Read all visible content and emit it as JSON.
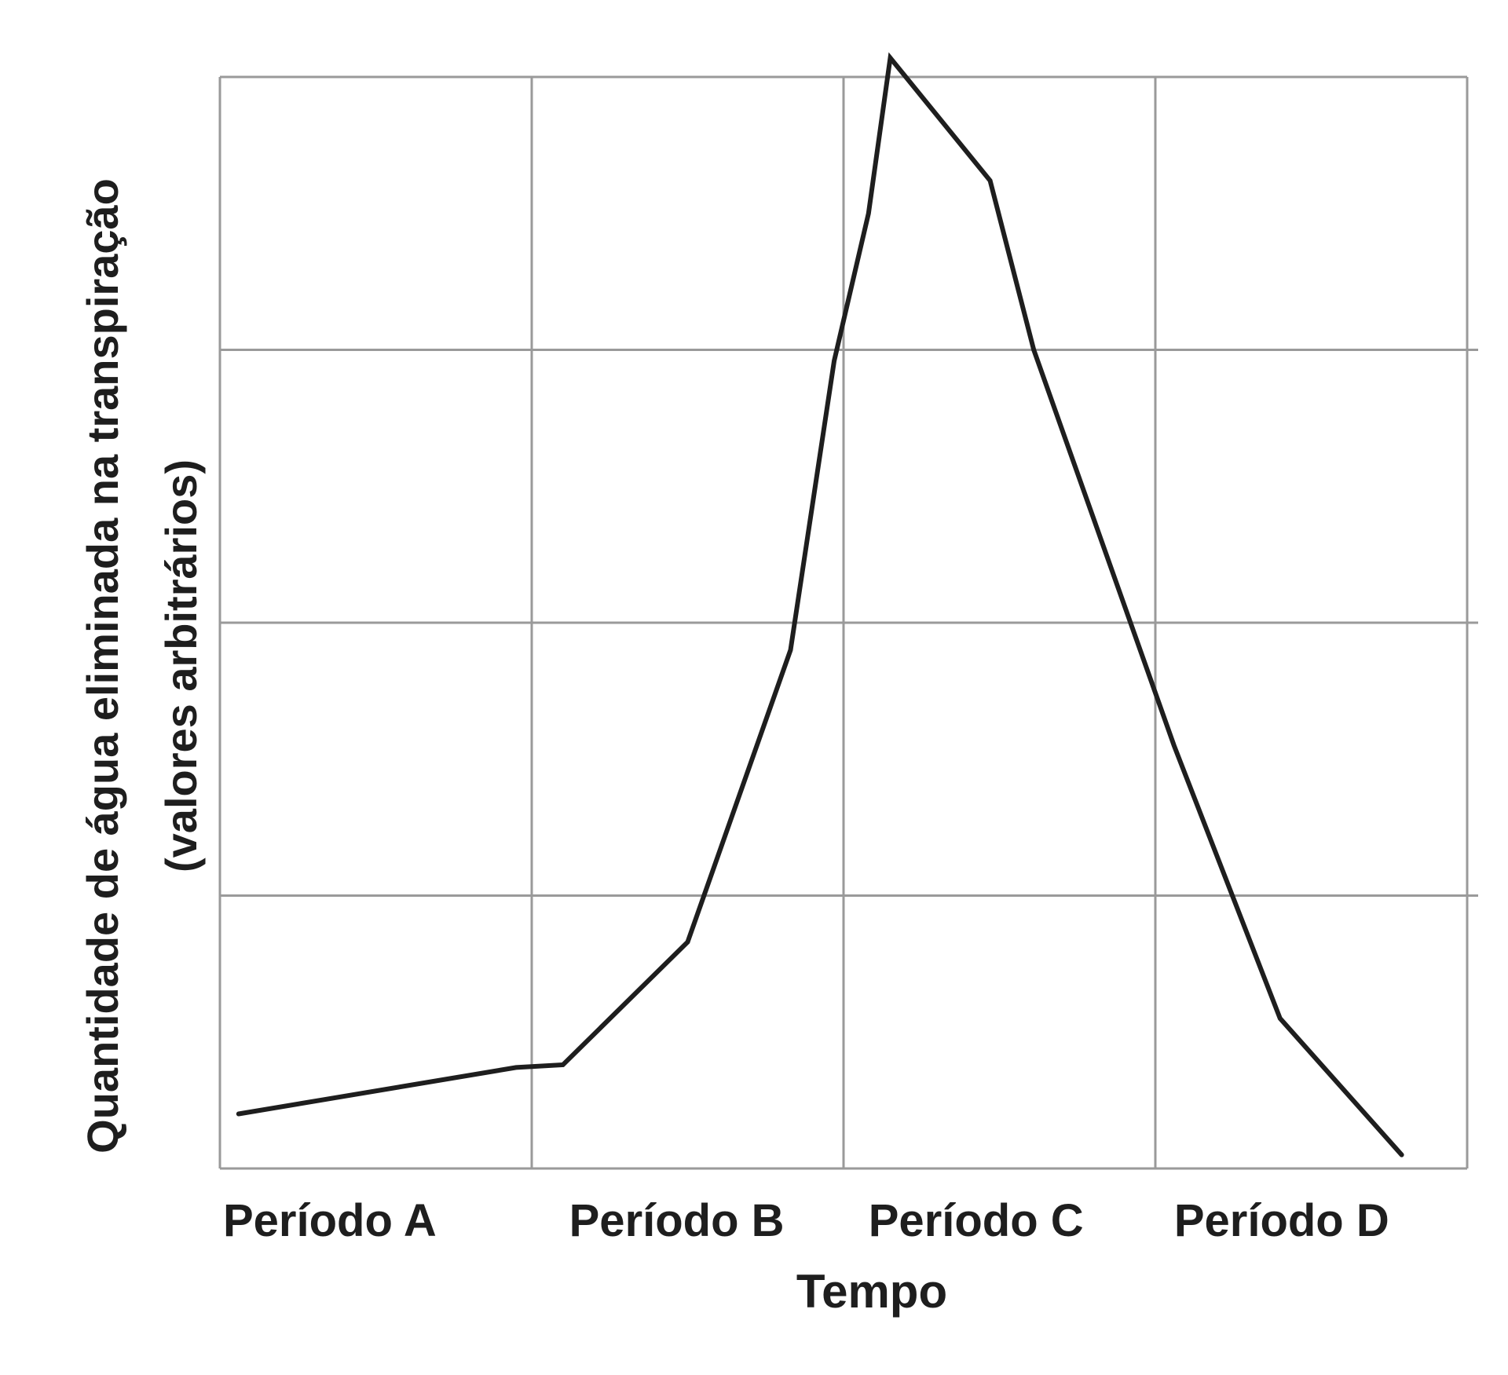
{
  "chart_data": {
    "type": "line",
    "title": "",
    "xlabel": "Tempo",
    "ylabel_line1": "Quantidade de água eliminada na transpiração",
    "ylabel_line2": "(valores arbitrários)",
    "categories": [
      "Período A",
      "Período B",
      "Período C",
      "Período D"
    ],
    "x_range": [
      0,
      4
    ],
    "ylim": [
      0,
      4
    ],
    "grid": true,
    "series": [
      {
        "x": [
          0.06,
          0.95,
          1.1,
          1.5,
          1.83,
          1.97,
          2.08,
          2.15,
          2.47,
          2.61,
          3.06,
          3.4,
          3.79
        ],
        "values": [
          0.2,
          0.37,
          0.38,
          0.83,
          1.9,
          2.96,
          3.5,
          4.07,
          3.62,
          3.0,
          1.55,
          0.55,
          0.05
        ]
      }
    ],
    "colors": {
      "line": "#1e1e1e",
      "grid": "#9a9a9a",
      "text": "#1e1e1e"
    }
  }
}
